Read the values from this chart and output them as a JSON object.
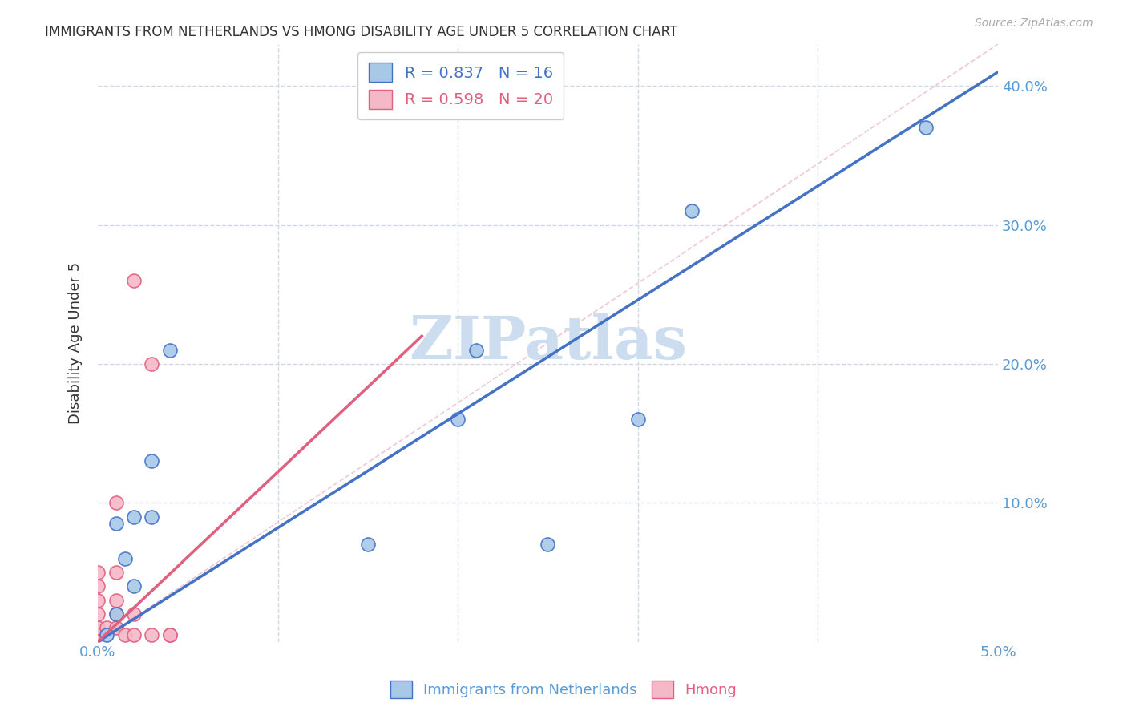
{
  "title": "IMMIGRANTS FROM NETHERLANDS VS HMONG DISABILITY AGE UNDER 5 CORRELATION CHART",
  "source": "Source: ZipAtlas.com",
  "ylabel": "Disability Age Under 5",
  "blue_label": "Immigrants from Netherlands",
  "pink_label": "Hmong",
  "blue_R": 0.837,
  "blue_N": 16,
  "pink_R": 0.598,
  "pink_N": 20,
  "xlim": [
    0.0,
    0.05
  ],
  "ylim": [
    0.0,
    0.43
  ],
  "right_yticks": [
    0.0,
    0.1,
    0.2,
    0.3,
    0.4
  ],
  "right_yticklabels": [
    "",
    "10.0%",
    "20.0%",
    "30.0%",
    "40.0%"
  ],
  "xticks": [
    0.0,
    0.01,
    0.02,
    0.03,
    0.04,
    0.05
  ],
  "xticklabels": [
    "0.0%",
    "",
    "",
    "",
    "",
    "5.0%"
  ],
  "blue_color": "#a8c8e8",
  "pink_color": "#f4b8c8",
  "blue_line_color": "#4472c4",
  "pink_line_color": "#e06080",
  "grid_color": "#d0d8e8",
  "watermark": "ZIPatlas",
  "blue_x": [
    0.0005,
    0.001,
    0.001,
    0.0015,
    0.002,
    0.002,
    0.003,
    0.003,
    0.004,
    0.015,
    0.02,
    0.021,
    0.025,
    0.03,
    0.033,
    0.046
  ],
  "blue_y": [
    0.005,
    0.02,
    0.085,
    0.06,
    0.04,
    0.09,
    0.09,
    0.13,
    0.21,
    0.07,
    0.16,
    0.21,
    0.07,
    0.16,
    0.31,
    0.37
  ],
  "pink_x": [
    0.0,
    0.0,
    0.0,
    0.0,
    0.0,
    0.0,
    0.0005,
    0.001,
    0.001,
    0.001,
    0.001,
    0.001,
    0.0015,
    0.002,
    0.002,
    0.002,
    0.003,
    0.003,
    0.004,
    0.004
  ],
  "pink_y": [
    0.005,
    0.01,
    0.02,
    0.03,
    0.04,
    0.05,
    0.01,
    0.01,
    0.02,
    0.03,
    0.05,
    0.1,
    0.005,
    0.005,
    0.02,
    0.26,
    0.005,
    0.2,
    0.005,
    0.005
  ],
  "title_color": "#333333",
  "axis_color": "#5b9bd5",
  "watermark_color": "#ccddf0",
  "background_color": "#ffffff",
  "blue_trendline_x": [
    0.0,
    0.05
  ],
  "blue_trendline_y": [
    0.0,
    0.41
  ],
  "pink_trendline_x": [
    0.0,
    0.018
  ],
  "pink_trendline_y": [
    0.0,
    0.22
  ]
}
